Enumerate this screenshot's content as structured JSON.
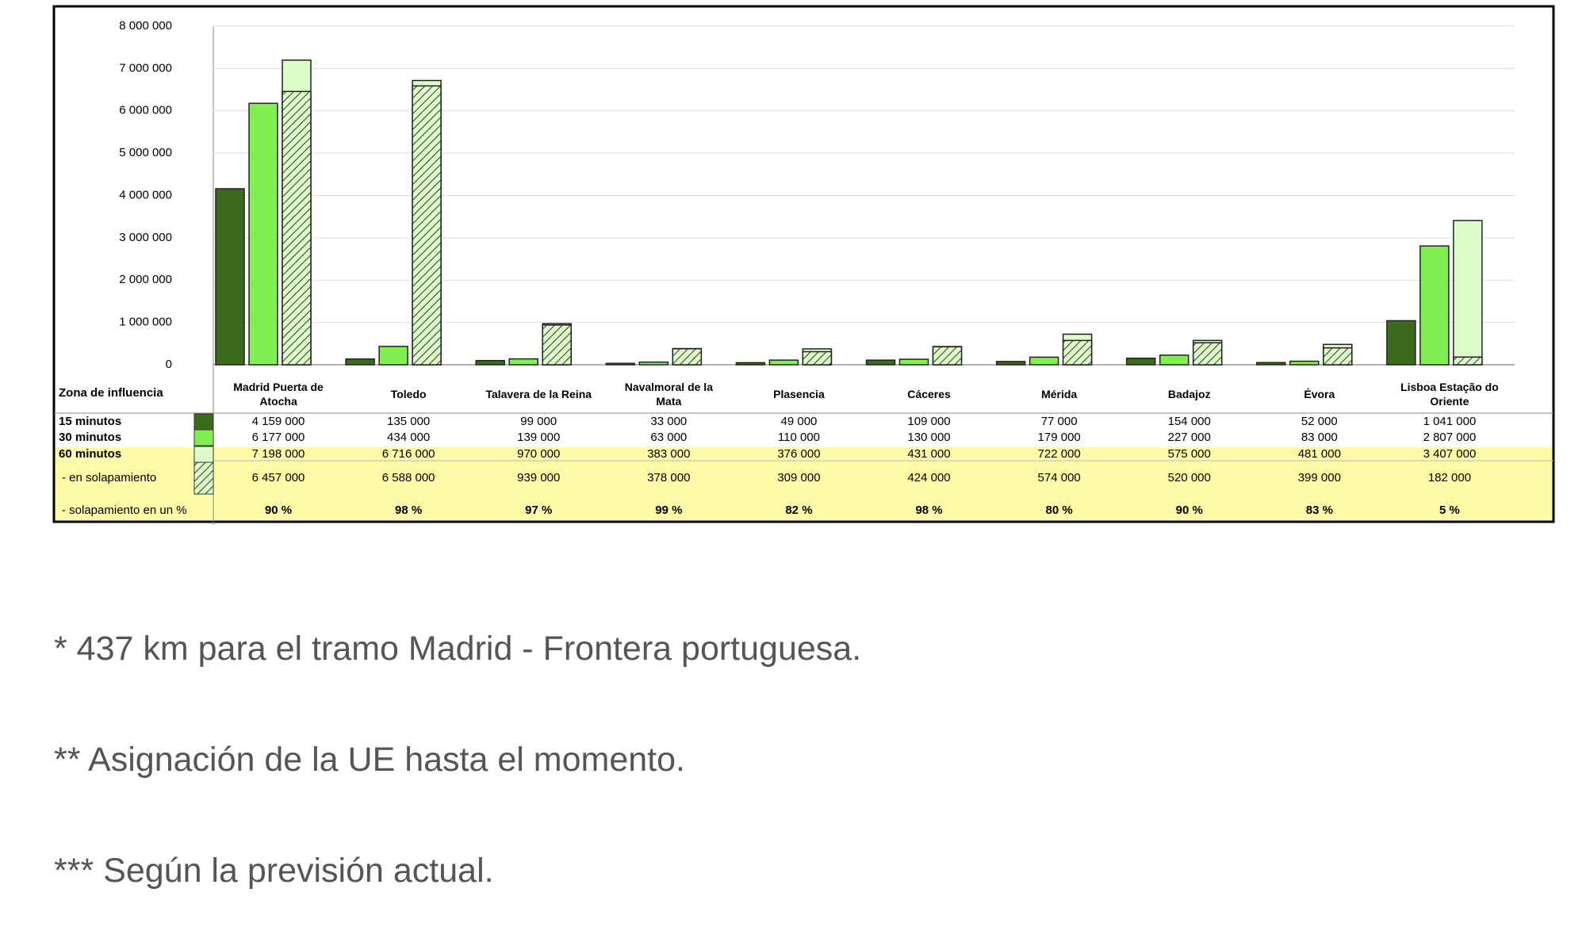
{
  "chart_data": {
    "type": "bar",
    "row_header": "Zona de influencia",
    "categories": [
      "Madrid Puerta de Atocha",
      "Toledo",
      "Talavera de la Reina",
      "Navalmoral de la Mata",
      "Plasencia",
      "Cáceres",
      "Mérida",
      "Badajoz",
      "Évora",
      "Lisboa Estação do Oriente"
    ],
    "series": [
      {
        "name": "15 minutos",
        "color": "#3d6b1e",
        "values": [
          4159000,
          135000,
          99000,
          33000,
          49000,
          109000,
          77000,
          154000,
          52000,
          1041000
        ],
        "value_labels": [
          "4 159 000",
          "135 000",
          "99 000",
          "33 000",
          "49 000",
          "109 000",
          "77 000",
          "154 000",
          "52 000",
          "1 041 000"
        ]
      },
      {
        "name": "30 minutos",
        "color": "#80f050",
        "values": [
          6177000,
          434000,
          139000,
          63000,
          110000,
          130000,
          179000,
          227000,
          83000,
          2807000
        ],
        "value_labels": [
          "6 177 000",
          "434 000",
          "139 000",
          "63 000",
          "110 000",
          "130 000",
          "179 000",
          "227 000",
          "83 000",
          "2 807 000"
        ]
      },
      {
        "name": "60 minutos",
        "color": "#dcfcc8",
        "values": [
          7198000,
          6716000,
          970000,
          383000,
          376000,
          431000,
          722000,
          575000,
          481000,
          3407000
        ],
        "value_labels": [
          "7 198 000",
          "6 716 000",
          "970 000",
          "383 000",
          "376 000",
          "431 000",
          "722 000",
          "575 000",
          "481 000",
          "3 407 000"
        ]
      }
    ],
    "overlap": {
      "name": "- en solapamiento",
      "values": [
        6457000,
        6588000,
        939000,
        378000,
        309000,
        424000,
        574000,
        520000,
        399000,
        182000
      ],
      "value_labels": [
        "6 457 000",
        "6 588 000",
        "939 000",
        "378 000",
        "309 000",
        "424 000",
        "574 000",
        "520 000",
        "399 000",
        "182 000"
      ]
    },
    "overlap_pct": {
      "name": "- solapamiento en un %",
      "values": [
        90,
        98,
        97,
        99,
        82,
        98,
        80,
        90,
        83,
        5
      ],
      "value_labels": [
        "90 %",
        "98 %",
        "97 %",
        "99 %",
        "82 %",
        "98 %",
        "80 %",
        "90 %",
        "83 %",
        "5 %"
      ]
    },
    "ylim": [
      0,
      8000000
    ],
    "yticks": [
      {
        "value": 0,
        "label": "0"
      },
      {
        "value": 1000000,
        "label": "1 000 000"
      },
      {
        "value": 2000000,
        "label": "2 000 000"
      },
      {
        "value": 3000000,
        "label": "3 000 000"
      },
      {
        "value": 4000000,
        "label": "4 000 000"
      },
      {
        "value": 5000000,
        "label": "5 000 000"
      },
      {
        "value": 6000000,
        "label": "6 000 000"
      },
      {
        "value": 7000000,
        "label": "7 000 000"
      },
      {
        "value": 8000000,
        "label": "8 000 000"
      }
    ],
    "grid": true
  },
  "footnotes": [
    "* 437 km para el tramo Madrid - Frontera portuguesa.",
    "** Asignación de la UE hasta el momento.",
    "*** Según la previsión actual."
  ]
}
